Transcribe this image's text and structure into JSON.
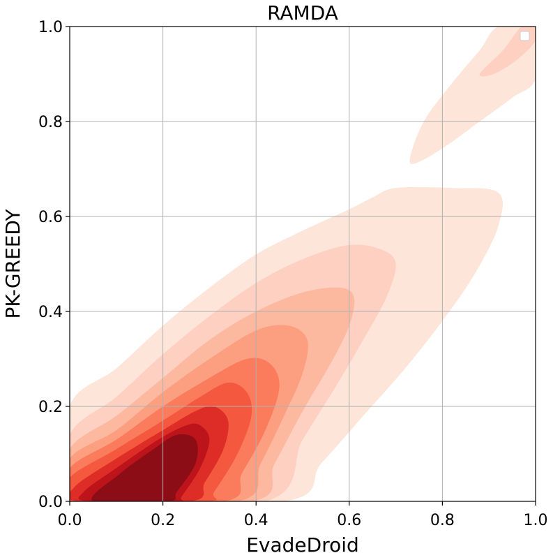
{
  "chart_data": {
    "type": "kde_contour",
    "title": "RAMDA",
    "xlabel": "EvadeDroid",
    "ylabel": "PK-GREEDY",
    "xlim": [
      0.0,
      1.0
    ],
    "ylim": [
      0.0,
      1.0
    ],
    "xticks": [
      "0.0",
      "0.2",
      "0.4",
      "0.6",
      "0.8",
      "1.0"
    ],
    "yticks": [
      "0.0",
      "0.2",
      "0.4",
      "0.6",
      "0.8",
      "1.0"
    ],
    "grid": true,
    "legend": {
      "placement": "top-right",
      "entries": []
    },
    "colormap": "Reds",
    "levels": [
      {
        "level": 1,
        "color": "#fee5d9",
        "polygon": [
          [
            0.0,
            0.2
          ],
          [
            0.1,
            0.28
          ],
          [
            0.2,
            0.37
          ],
          [
            0.3,
            0.45
          ],
          [
            0.4,
            0.52
          ],
          [
            0.5,
            0.57
          ],
          [
            0.6,
            0.615
          ],
          [
            0.65,
            0.64
          ],
          [
            0.7,
            0.66
          ],
          [
            0.82,
            0.66
          ],
          [
            0.92,
            0.65
          ],
          [
            0.92,
            0.58
          ],
          [
            0.87,
            0.48
          ],
          [
            0.8,
            0.38
          ],
          [
            0.72,
            0.28
          ],
          [
            0.63,
            0.18
          ],
          [
            0.54,
            0.08
          ],
          [
            0.46,
            0.0
          ],
          [
            0.0,
            0.0
          ]
        ]
      },
      {
        "level": 1,
        "color": "#fee5d9",
        "polygon": [
          [
            0.73,
            0.72
          ],
          [
            0.76,
            0.8
          ],
          [
            0.82,
            0.88
          ],
          [
            0.88,
            0.95
          ],
          [
            0.92,
            1.0
          ],
          [
            1.0,
            1.0
          ],
          [
            1.0,
            0.89
          ],
          [
            0.95,
            0.85
          ],
          [
            0.88,
            0.8
          ],
          [
            0.81,
            0.75
          ],
          [
            0.75,
            0.715
          ]
        ]
      },
      {
        "level": 2,
        "color": "#fdd0c2",
        "polygon": [
          [
            0.0,
            0.14
          ],
          [
            0.1,
            0.22
          ],
          [
            0.2,
            0.31
          ],
          [
            0.3,
            0.39
          ],
          [
            0.4,
            0.46
          ],
          [
            0.5,
            0.51
          ],
          [
            0.6,
            0.54
          ],
          [
            0.67,
            0.53
          ],
          [
            0.7,
            0.5
          ],
          [
            0.68,
            0.43
          ],
          [
            0.63,
            0.34
          ],
          [
            0.57,
            0.24
          ],
          [
            0.5,
            0.13
          ],
          [
            0.42,
            0.0
          ],
          [
            0.0,
            0.0
          ]
        ]
      },
      {
        "level": 2,
        "color": "#fdd0c2",
        "polygon": [
          [
            0.88,
            0.9
          ],
          [
            0.93,
            0.95
          ],
          [
            0.97,
            1.0
          ],
          [
            1.0,
            1.0
          ],
          [
            1.0,
            0.97
          ],
          [
            0.96,
            0.93
          ],
          [
            0.91,
            0.9
          ]
        ]
      },
      {
        "level": 3,
        "color": "#fcb9a0",
        "polygon": [
          [
            0.0,
            0.11
          ],
          [
            0.1,
            0.18
          ],
          [
            0.2,
            0.26
          ],
          [
            0.3,
            0.34
          ],
          [
            0.4,
            0.4
          ],
          [
            0.5,
            0.44
          ],
          [
            0.58,
            0.45
          ],
          [
            0.61,
            0.43
          ],
          [
            0.6,
            0.37
          ],
          [
            0.56,
            0.29
          ],
          [
            0.5,
            0.19
          ],
          [
            0.44,
            0.08
          ],
          [
            0.39,
            0.0
          ],
          [
            0.0,
            0.0
          ]
        ]
      },
      {
        "level": 4,
        "color": "#fc9f80",
        "polygon": [
          [
            0.0,
            0.09
          ],
          [
            0.1,
            0.15
          ],
          [
            0.2,
            0.23
          ],
          [
            0.3,
            0.3
          ],
          [
            0.4,
            0.36
          ],
          [
            0.47,
            0.37
          ],
          [
            0.51,
            0.34
          ],
          [
            0.5,
            0.27
          ],
          [
            0.46,
            0.18
          ],
          [
            0.41,
            0.08
          ],
          [
            0.36,
            0.0
          ],
          [
            0.0,
            0.0
          ]
        ]
      },
      {
        "level": 5,
        "color": "#fb7c5c",
        "polygon": [
          [
            0.0,
            0.07
          ],
          [
            0.1,
            0.13
          ],
          [
            0.2,
            0.2
          ],
          [
            0.3,
            0.26
          ],
          [
            0.38,
            0.3
          ],
          [
            0.43,
            0.29
          ],
          [
            0.45,
            0.24
          ],
          [
            0.42,
            0.15
          ],
          [
            0.37,
            0.06
          ],
          [
            0.33,
            0.0
          ],
          [
            0.0,
            0.0
          ]
        ]
      },
      {
        "level": 6,
        "color": "#f4583e",
        "polygon": [
          [
            0.0,
            0.05
          ],
          [
            0.1,
            0.11
          ],
          [
            0.2,
            0.17
          ],
          [
            0.28,
            0.22
          ],
          [
            0.34,
            0.25
          ],
          [
            0.38,
            0.23
          ],
          [
            0.39,
            0.18
          ],
          [
            0.36,
            0.1
          ],
          [
            0.31,
            0.02
          ],
          [
            0.29,
            0.0
          ],
          [
            0.0,
            0.0
          ]
        ]
      },
      {
        "level": 7,
        "color": "#de2d26",
        "polygon": [
          [
            0.01,
            0.03
          ],
          [
            0.1,
            0.09
          ],
          [
            0.2,
            0.15
          ],
          [
            0.27,
            0.19
          ],
          [
            0.31,
            0.2
          ],
          [
            0.34,
            0.17
          ],
          [
            0.33,
            0.11
          ],
          [
            0.29,
            0.04
          ],
          [
            0.26,
            0.0
          ],
          [
            0.02,
            0.0
          ]
        ]
      },
      {
        "level": 8,
        "color": "#bc141a",
        "polygon": [
          [
            0.03,
            0.02
          ],
          [
            0.1,
            0.07
          ],
          [
            0.19,
            0.13
          ],
          [
            0.25,
            0.16
          ],
          [
            0.28,
            0.16
          ],
          [
            0.3,
            0.13
          ],
          [
            0.28,
            0.07
          ],
          [
            0.24,
            0.01
          ],
          [
            0.23,
            0.0
          ],
          [
            0.04,
            0.0
          ]
        ]
      },
      {
        "level": 9,
        "color": "#8c0d15",
        "polygon": [
          [
            0.05,
            0.0
          ],
          [
            0.11,
            0.06
          ],
          [
            0.18,
            0.11
          ],
          [
            0.23,
            0.14
          ],
          [
            0.27,
            0.13
          ],
          [
            0.27,
            0.08
          ],
          [
            0.23,
            0.02
          ],
          [
            0.21,
            0.0
          ]
        ]
      }
    ]
  }
}
